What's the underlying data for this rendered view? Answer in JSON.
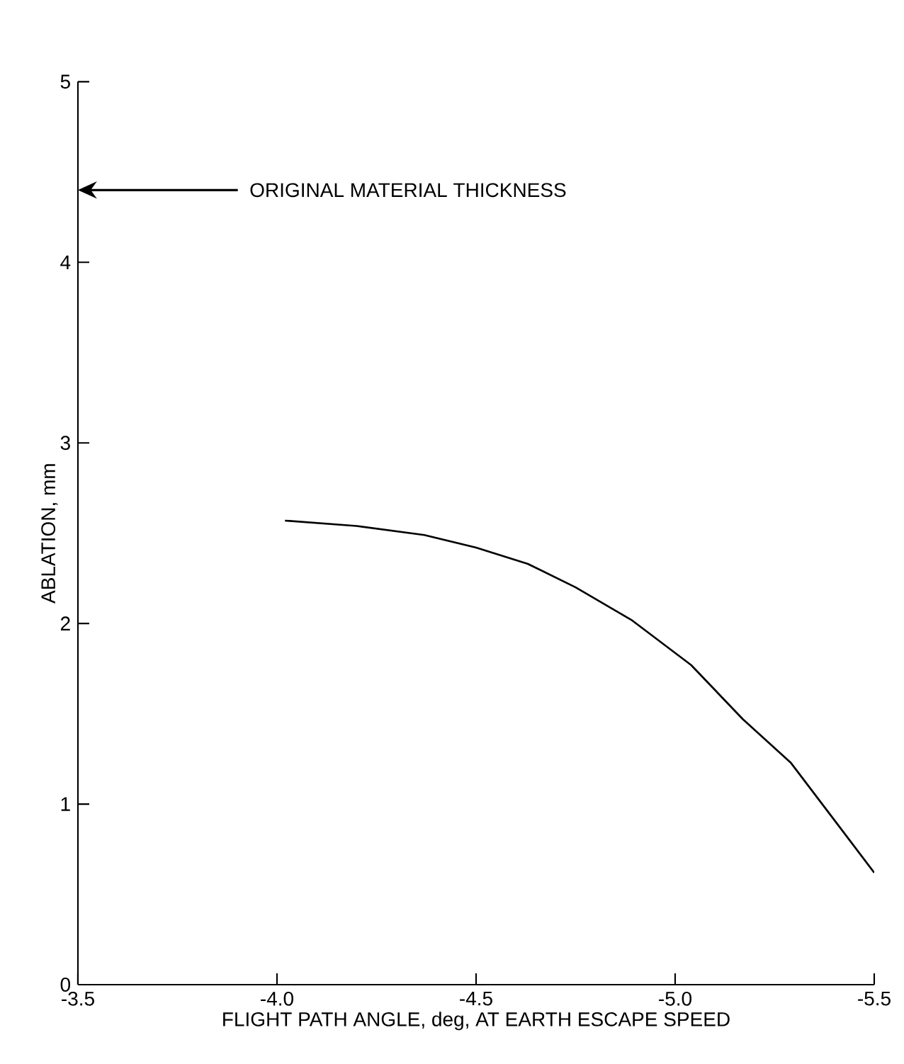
{
  "chart_data": {
    "type": "line",
    "xlabel": "FLIGHT PATH ANGLE, deg, AT EARTH ESCAPE SPEED",
    "ylabel": "ABLATION, mm",
    "x": [
      -4.02,
      -4.2,
      -4.37,
      -4.5,
      -4.63,
      -4.75,
      -4.89,
      -5.04,
      -5.17,
      -5.29,
      -5.39,
      -5.5
    ],
    "series": [
      {
        "color": "#000000",
        "values": [
          2.57,
          2.54,
          2.49,
          2.42,
          2.33,
          2.2,
          2.02,
          1.77,
          1.47,
          1.23,
          0.94,
          0.62
        ]
      }
    ],
    "xlim": [
      -3.5,
      -5.5
    ],
    "ylim": [
      0,
      5
    ],
    "xticks": [
      -3.5,
      {
        "value": -4,
        "label": "-4.0"
      },
      -4.5,
      {
        "value": -5,
        "label": "-5.0"
      },
      -5.5
    ],
    "yticks": [
      0,
      1,
      2,
      3,
      4,
      5
    ],
    "annotations": [
      "ORIGINAL MATERIAL THICKNESS"
    ],
    "grid": false,
    "marker": "none",
    "line_style": "solid"
  }
}
